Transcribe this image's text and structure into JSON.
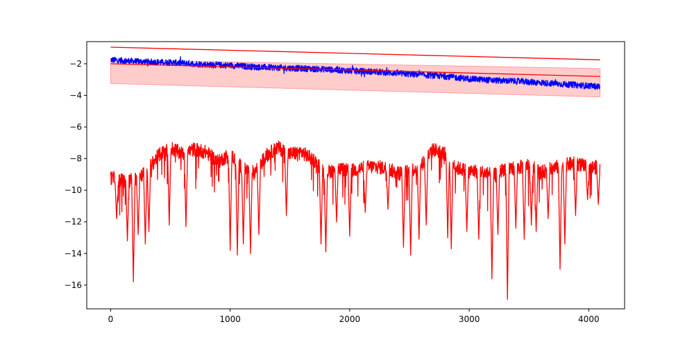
{
  "chart_data": {
    "type": "line",
    "title": "",
    "xlabel": "",
    "ylabel": "",
    "xlim": [
      -200,
      4300
    ],
    "ylim": [
      -17.5,
      -0.6
    ],
    "x_ticks": [
      0,
      1000,
      2000,
      3000,
      4000
    ],
    "y_ticks": [
      -16,
      -14,
      -12,
      -10,
      -8,
      -6,
      -4,
      -2
    ],
    "grid": false,
    "legend": "none",
    "n_points": 4096,
    "series": [
      {
        "kind": "line",
        "color": "#0000ff",
        "x": [
          0,
          200,
          400,
          600,
          800,
          1000,
          1200,
          1400,
          1600,
          1800,
          2000,
          2200,
          2400,
          2600,
          2800,
          3000,
          3200,
          3400,
          3600,
          3800,
          4000,
          4095
        ],
        "y": [
          -1.75,
          -1.85,
          -1.9,
          -1.95,
          -2.05,
          -2.1,
          -2.2,
          -2.25,
          -2.3,
          -2.35,
          -2.45,
          -2.5,
          -2.6,
          -2.7,
          -2.8,
          -2.95,
          -3.05,
          -3.1,
          -3.2,
          -3.3,
          -3.4,
          -3.45
        ],
        "noise": 0.09
      },
      {
        "kind": "line",
        "color": "#ff0000",
        "x": [
          0,
          4095
        ],
        "y": [
          -0.95,
          -1.75
        ]
      },
      {
        "kind": "line",
        "color": "#ff0000",
        "x": [
          0,
          4095
        ],
        "y": [
          -2.0,
          -2.8
        ]
      },
      {
        "kind": "band",
        "color": "#ff0000",
        "opacity": 0.2,
        "x": [
          0,
          4095
        ],
        "upper": [
          -1.75,
          -2.3
        ],
        "lower": [
          -3.25,
          -4.1
        ]
      },
      {
        "kind": "line",
        "color": "#ff0000",
        "x": [
          0,
          100,
          200,
          300,
          400,
          500,
          600,
          700,
          800,
          900,
          1000,
          1100,
          1200,
          1300,
          1400,
          1500,
          1600,
          1700,
          1800,
          1900,
          2000,
          2100,
          2200,
          2300,
          2400,
          2500,
          2600,
          2700,
          2800,
          2900,
          3000,
          3100,
          3200,
          3300,
          3400,
          3500,
          3600,
          3700,
          3800,
          3900,
          4000,
          4095
        ],
        "y": [
          -9.2,
          -9.4,
          -9.3,
          -8.8,
          -7.8,
          -7.3,
          -7.7,
          -7.4,
          -7.6,
          -8.2,
          -7.7,
          -8.6,
          -8.9,
          -7.8,
          -7.3,
          -7.7,
          -7.6,
          -8.1,
          -8.9,
          -8.6,
          -8.8,
          -8.6,
          -8.5,
          -8.6,
          -8.9,
          -8.8,
          -8.4,
          -7.4,
          -7.7,
          -8.6,
          -8.8,
          -8.8,
          -9.1,
          -8.6,
          -8.6,
          -8.4,
          -8.9,
          -8.6,
          -8.4,
          -8.3,
          -8.6,
          -8.5
        ],
        "dips": [
          [
            50,
            -11.8
          ],
          [
            140,
            -13.2
          ],
          [
            190,
            -15.8
          ],
          [
            230,
            -12.8
          ],
          [
            290,
            -13.4
          ],
          [
            320,
            -12.6
          ],
          [
            490,
            -12.2
          ],
          [
            630,
            -12.3
          ],
          [
            1000,
            -13.8
          ],
          [
            1060,
            -14.1
          ],
          [
            1110,
            -13.4
          ],
          [
            1170,
            -14.0
          ],
          [
            1240,
            -12.8
          ],
          [
            1470,
            -11.6
          ],
          [
            1760,
            -13.4
          ],
          [
            1800,
            -13.9
          ],
          [
            1890,
            -12.0
          ],
          [
            2000,
            -12.9
          ],
          [
            2130,
            -11.4
          ],
          [
            2320,
            -11.2
          ],
          [
            2450,
            -13.6
          ],
          [
            2510,
            -14.1
          ],
          [
            2580,
            -13.1
          ],
          [
            2640,
            -12.2
          ],
          [
            2820,
            -13.0
          ],
          [
            2850,
            -13.7
          ],
          [
            2980,
            -12.6
          ],
          [
            3080,
            -13.1
          ],
          [
            3190,
            -15.6
          ],
          [
            3240,
            -12.8
          ],
          [
            3320,
            -16.9
          ],
          [
            3390,
            -12.4
          ],
          [
            3460,
            -13.1
          ],
          [
            3520,
            -12.2
          ],
          [
            3560,
            -12.6
          ],
          [
            3660,
            -11.8
          ],
          [
            3760,
            -15.0
          ],
          [
            3800,
            -13.4
          ],
          [
            3890,
            -11.6
          ],
          [
            3990,
            -10.6
          ],
          [
            4080,
            -10.9
          ]
        ]
      }
    ]
  }
}
